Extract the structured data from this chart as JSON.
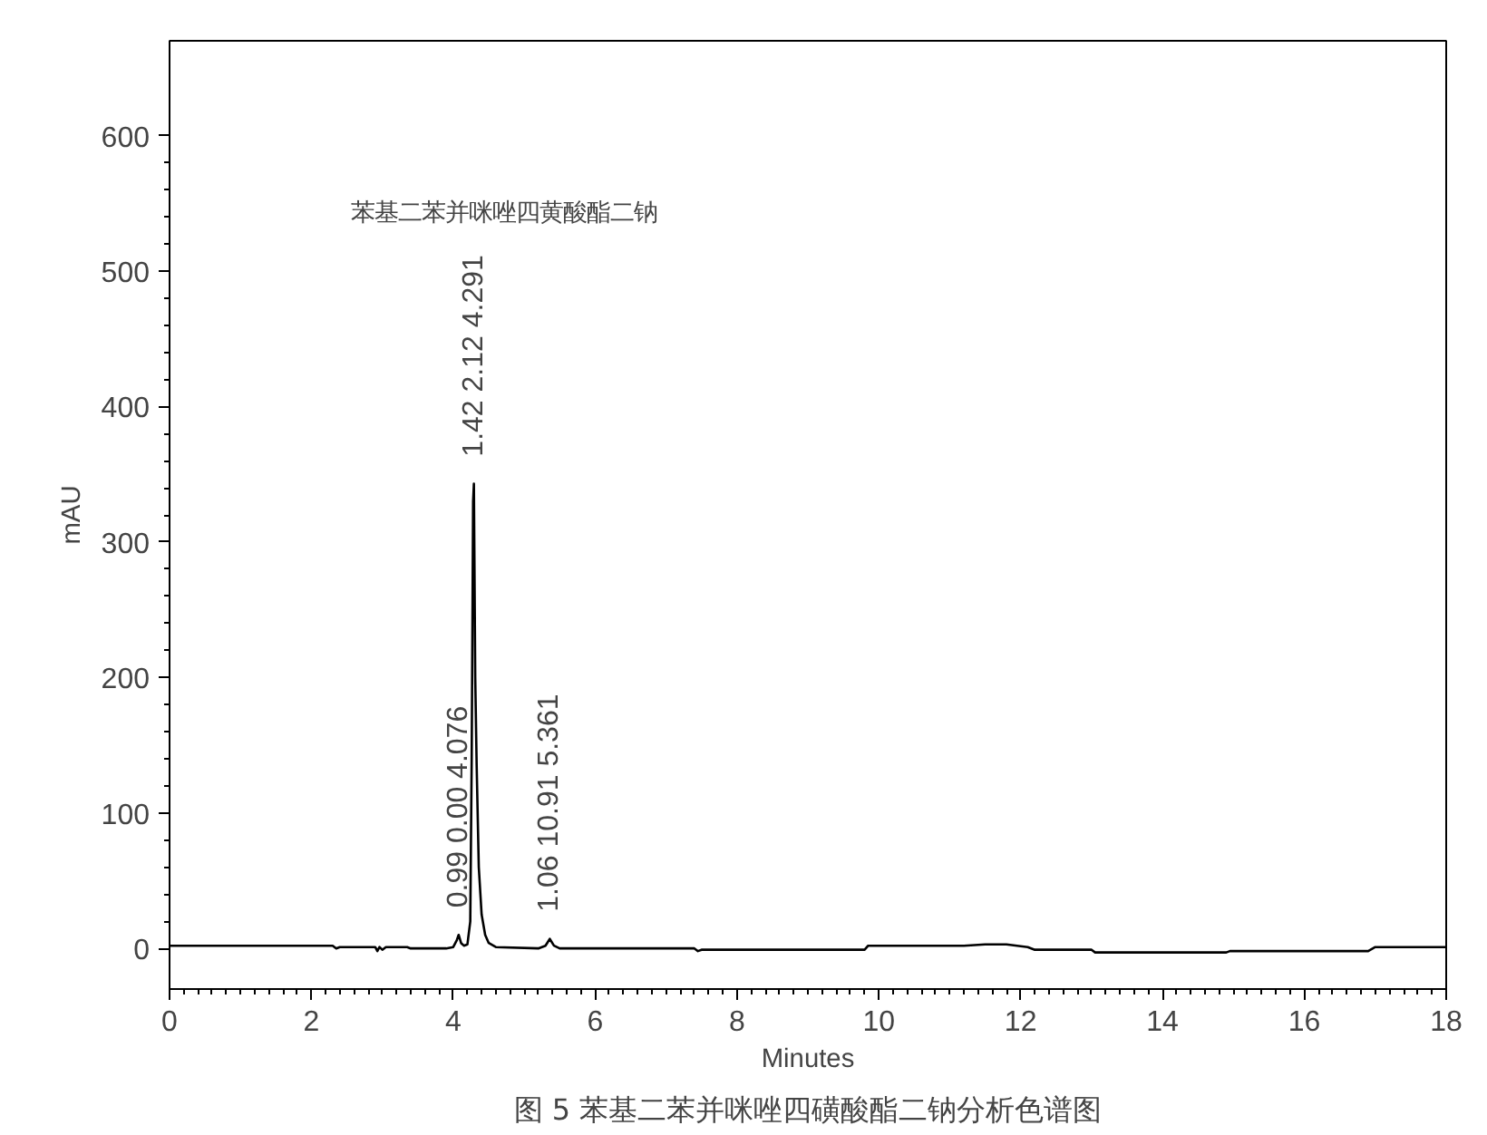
{
  "chart_data": {
    "type": "line",
    "title": "图 5 苯基二苯并咪唑四磺酸酯二钠分析色谱图",
    "xlabel": "Minutes",
    "ylabel": "mAU",
    "x": [
      0,
      2.3,
      2.35,
      2.4,
      2.9,
      2.93,
      2.96,
      3.0,
      3.05,
      3.35,
      3.4,
      3.9,
      4.0,
      4.05,
      4.076,
      4.11,
      4.15,
      4.2,
      4.24,
      4.26,
      4.28,
      4.291,
      4.31,
      4.33,
      4.36,
      4.4,
      4.45,
      4.5,
      4.6,
      5.2,
      5.3,
      5.361,
      5.42,
      5.5,
      7.4,
      7.45,
      7.5,
      9.8,
      9.85,
      11.2,
      11.5,
      11.8,
      12.1,
      12.2,
      13,
      13.05,
      14.9,
      14.95,
      16.9,
      17.0,
      18
    ],
    "series": [
      {
        "color": "#000000",
        "values": [
          2,
          2,
          0,
          1,
          1,
          -2,
          1,
          -1,
          1,
          1,
          0,
          0,
          1,
          6,
          10,
          4,
          2,
          3,
          20,
          140,
          330,
          343,
          200,
          135,
          60,
          25,
          10,
          4,
          1,
          0,
          2,
          7,
          2,
          0,
          0,
          -2,
          -1,
          -1,
          2,
          2,
          3,
          3,
          1,
          -1,
          -1,
          -3,
          -3,
          -2,
          -2,
          1,
          1
        ]
      }
    ],
    "xlim": [
      0,
      18
    ],
    "ylim": [
      -30,
      670
    ],
    "xticks": [
      0,
      2,
      4,
      6,
      8,
      10,
      12,
      14,
      16,
      18
    ],
    "yticks": [
      0,
      100,
      200,
      300,
      400,
      500,
      600
    ],
    "grid": false,
    "marker": "none",
    "line_style": "solid",
    "annotations": [
      "苯基二苯并咪唑四黄酸酯二钠",
      {
        "text": "0.99 0.00 4.076",
        "x": 4.076,
        "y": 10
      },
      {
        "text": "1.42 2.12 4.291",
        "x": 4.291,
        "y": 343
      },
      {
        "text": "1.06 10.91 5.361",
        "x": 5.361,
        "y": 7
      }
    ]
  }
}
